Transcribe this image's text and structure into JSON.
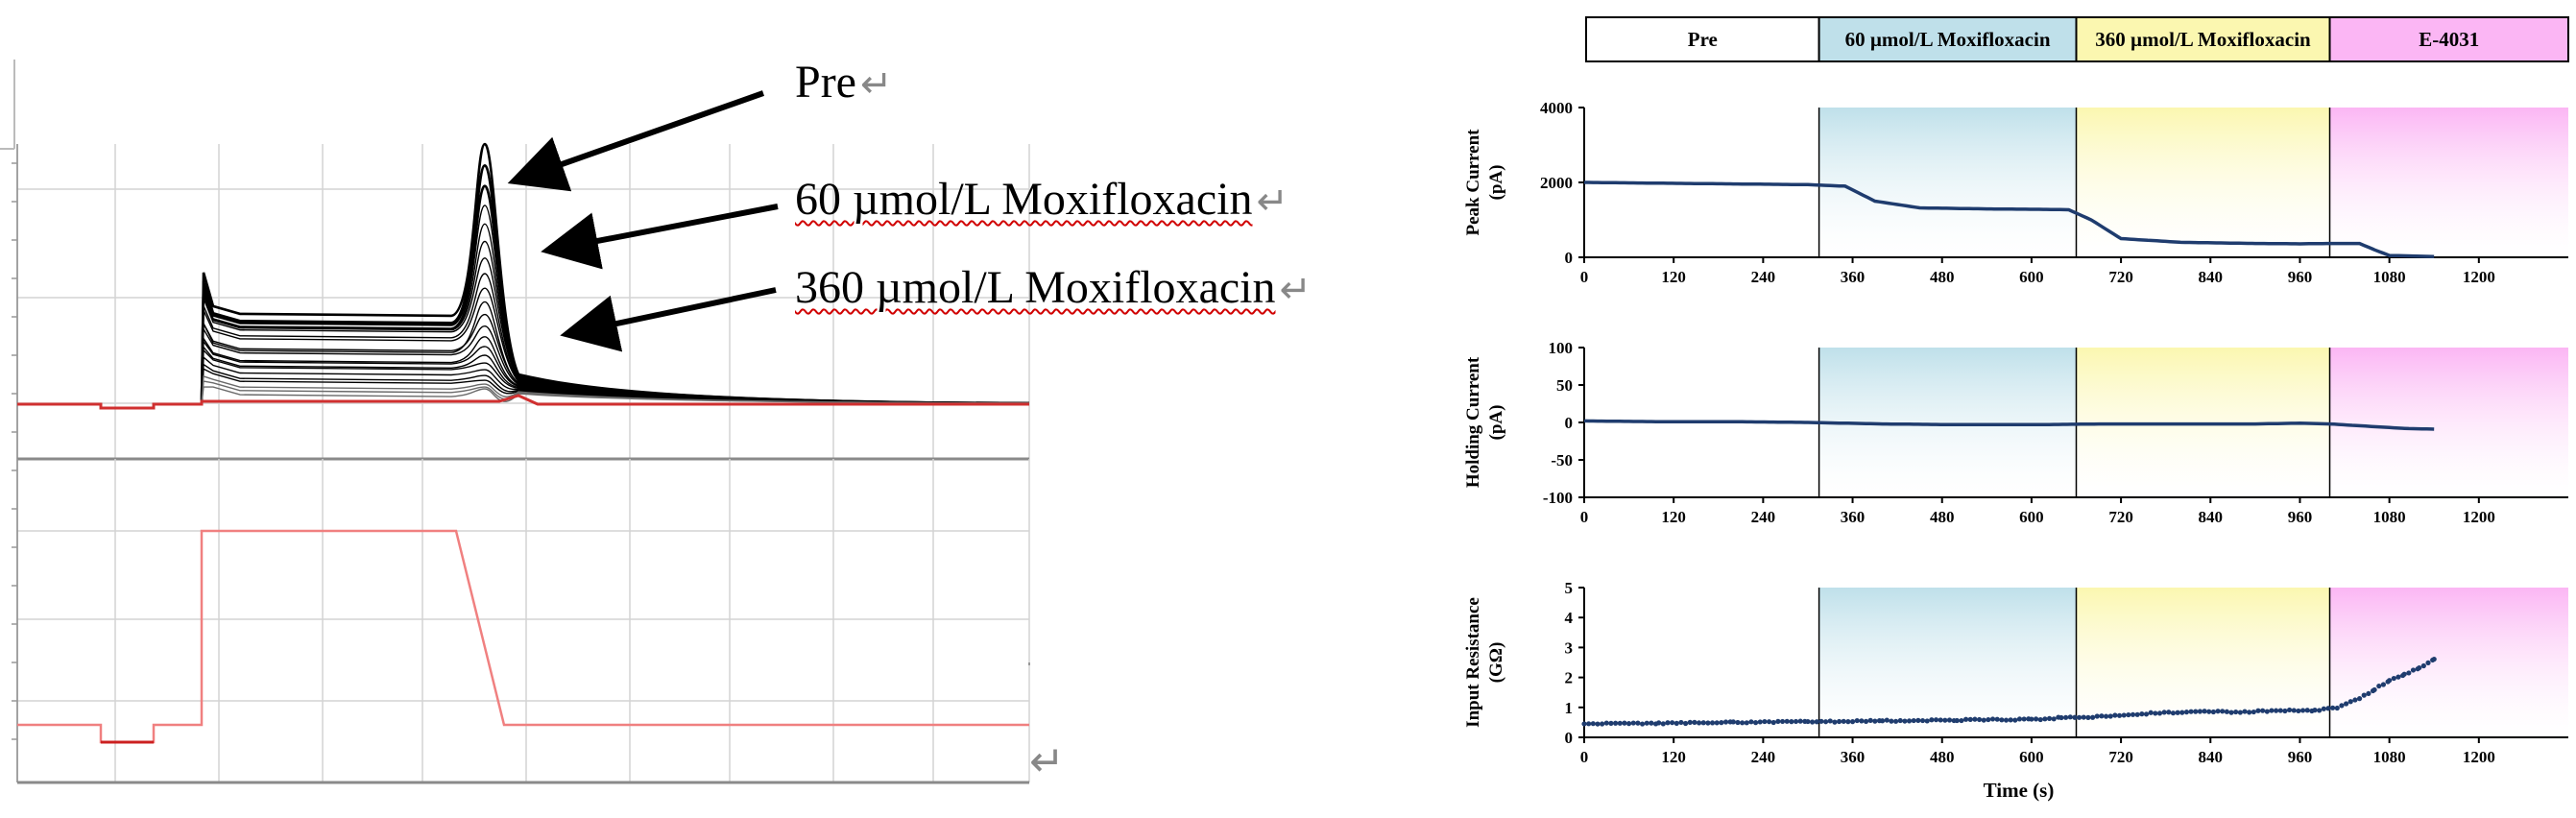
{
  "left_panel": {
    "annotations": [
      {
        "label": "Pre"
      },
      {
        "label": "60 µmol/L Moxifloxacin"
      },
      {
        "label": "360 µmol/L Moxifloxacin"
      }
    ],
    "return_glyph": "↵"
  },
  "chart_data": [
    {
      "type": "line",
      "ylabel": "Peak Current (pA)",
      "ylim": [
        0,
        4000
      ],
      "yticks": [
        "4000",
        "2000",
        "0"
      ],
      "xlim": [
        0,
        1320
      ],
      "xticks": [
        "0",
        "120",
        "240",
        "360",
        "480",
        "600",
        "720",
        "840",
        "960",
        "1080",
        "1200"
      ],
      "series": [
        {
          "x": [
            0,
            100,
            200,
            300,
            350,
            390,
            450,
            550,
            620,
            650,
            680,
            720,
            800,
            900,
            960,
            1000,
            1040,
            1060,
            1080,
            1140
          ],
          "y": [
            2000,
            1980,
            1960,
            1940,
            1900,
            1500,
            1320,
            1290,
            1280,
            1270,
            1000,
            500,
            400,
            370,
            360,
            370,
            370,
            200,
            50,
            20
          ]
        }
      ]
    },
    {
      "type": "line",
      "ylabel": "Holding Current (pA)",
      "ylim": [
        -100,
        100
      ],
      "yticks": [
        "100",
        "50",
        "0",
        "-50",
        "-100"
      ],
      "xlim": [
        0,
        1320
      ],
      "xticks": [
        "0",
        "120",
        "240",
        "360",
        "480",
        "600",
        "720",
        "840",
        "960",
        "1080",
        "1200"
      ],
      "series": [
        {
          "x": [
            0,
            100,
            200,
            300,
            400,
            500,
            600,
            700,
            800,
            900,
            960,
            1000,
            1050,
            1100,
            1140
          ],
          "y": [
            2,
            1,
            1,
            0,
            -2,
            -3,
            -3,
            -2,
            -2,
            -2,
            -1,
            -2,
            -5,
            -8,
            -9
          ]
        }
      ]
    },
    {
      "type": "scatter",
      "xlabel": "Time (s)",
      "ylabel": "Input Resistance (GΩ)",
      "ylim": [
        0,
        5
      ],
      "yticks": [
        "5",
        "4",
        "3",
        "2",
        "1",
        "0"
      ],
      "xlim": [
        0,
        1320
      ],
      "xticks": [
        "0",
        "120",
        "240",
        "360",
        "480",
        "600",
        "720",
        "840",
        "960",
        "1080",
        "1200"
      ],
      "series": [
        {
          "x": [
            0,
            100,
            200,
            300,
            400,
            500,
            600,
            640,
            700,
            760,
            820,
            880,
            940,
            980,
            1010,
            1040,
            1060,
            1080,
            1100,
            1120,
            1140
          ],
          "y": [
            0.45,
            0.47,
            0.5,
            0.52,
            0.55,
            0.58,
            0.6,
            0.65,
            0.7,
            0.8,
            0.85,
            0.85,
            0.9,
            0.9,
            1.0,
            1.3,
            1.6,
            1.9,
            2.1,
            2.3,
            2.6
          ]
        }
      ]
    }
  ],
  "phases": [
    {
      "label": "Pre",
      "start": 0,
      "end": 315,
      "color": "#ffffff"
    },
    {
      "label": "60 µmol/L Moxifloxacin",
      "start": 315,
      "end": 660,
      "color": "#bfe0ea"
    },
    {
      "label": "360 µmol/L Moxifloxacin",
      "start": 660,
      "end": 1000,
      "color": "#fbf7b0"
    },
    {
      "label": "E-4031",
      "start": 1000,
      "end": 1320,
      "color": "#fbb6f4"
    }
  ],
  "colors": {
    "trace": "#1f3c6e",
    "grid": "#c8c8c8",
    "red_trace": "#e04040"
  }
}
